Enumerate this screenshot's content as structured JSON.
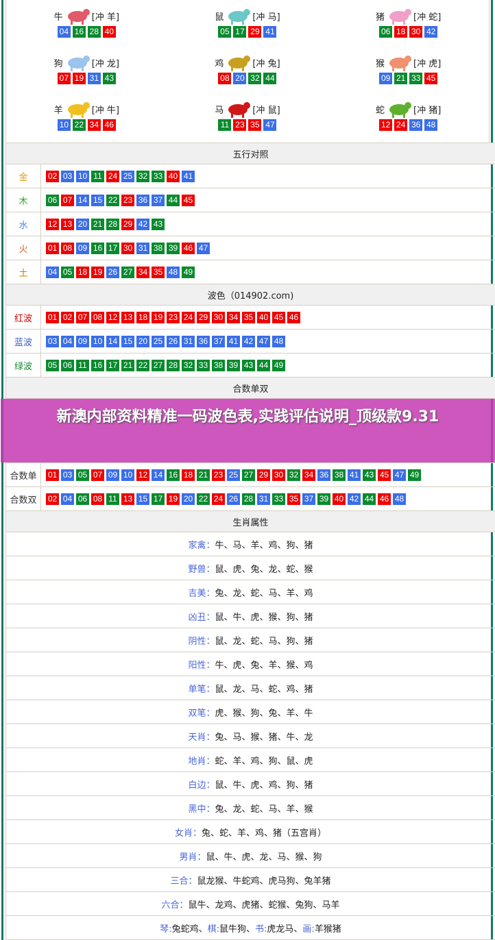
{
  "colors": {
    "red": "#f00000",
    "blue": "#3a6ee8",
    "green": "#0a8a2e",
    "frame": "#0f7a6a",
    "banner": "#c43ab2"
  },
  "zodiac": [
    {
      "name": "牛",
      "clash": "[冲 羊]",
      "nums": [
        "04",
        "16",
        "28",
        "40"
      ],
      "img": "#e05a6a"
    },
    {
      "name": "鼠",
      "clash": "[冲 马]",
      "nums": [
        "05",
        "17",
        "29",
        "41"
      ],
      "img": "#6cc8c8"
    },
    {
      "name": "猪",
      "clash": "[冲 蛇]",
      "nums": [
        "06",
        "18",
        "30",
        "42"
      ],
      "img": "#f0a0c8"
    },
    {
      "name": "狗",
      "clash": "[冲 龙]",
      "nums": [
        "07",
        "19",
        "31",
        "43"
      ],
      "img": "#9cc4ec"
    },
    {
      "name": "鸡",
      "clash": "[冲 兔]",
      "nums": [
        "08",
        "20",
        "32",
        "44"
      ],
      "img": "#c8a020"
    },
    {
      "name": "猴",
      "clash": "[冲 虎]",
      "nums": [
        "09",
        "21",
        "33",
        "45"
      ],
      "img": "#f09070"
    },
    {
      "name": "羊",
      "clash": "[冲 牛]",
      "nums": [
        "10",
        "22",
        "34",
        "46"
      ],
      "img": "#f0c020"
    },
    {
      "name": "马",
      "clash": "[冲 鼠]",
      "nums": [
        "11",
        "23",
        "35",
        "47"
      ],
      "img": "#d01818"
    },
    {
      "name": "蛇",
      "clash": "[冲 猪]",
      "nums": [
        "12",
        "24",
        "36",
        "48"
      ],
      "img": "#60b030"
    }
  ],
  "wuxing": {
    "title": "五行对照",
    "rows": [
      {
        "label": "金",
        "color": "#e0a000",
        "nums": [
          "02",
          "03",
          "10",
          "11",
          "24",
          "25",
          "32",
          "33",
          "40",
          "41"
        ]
      },
      {
        "label": "木",
        "color": "#30a030",
        "nums": [
          "06",
          "07",
          "14",
          "15",
          "22",
          "23",
          "36",
          "37",
          "44",
          "45"
        ]
      },
      {
        "label": "水",
        "color": "#4a80e0",
        "nums": [
          "12",
          "13",
          "20",
          "21",
          "28",
          "29",
          "42",
          "43"
        ]
      },
      {
        "label": "火",
        "color": "#e06030",
        "nums": [
          "01",
          "08",
          "09",
          "16",
          "17",
          "30",
          "31",
          "38",
          "39",
          "46",
          "47"
        ]
      },
      {
        "label": "土",
        "color": "#c08000",
        "nums": [
          "04",
          "05",
          "18",
          "19",
          "26",
          "27",
          "34",
          "35",
          "48",
          "49"
        ]
      }
    ]
  },
  "bose": {
    "title": "波色（014902.com)",
    "rows": [
      {
        "label": "红波",
        "color": "#e00000",
        "wave": "red",
        "nums": [
          "01",
          "02",
          "07",
          "08",
          "12",
          "13",
          "18",
          "19",
          "23",
          "24",
          "29",
          "30",
          "34",
          "35",
          "40",
          "45",
          "46"
        ]
      },
      {
        "label": "蓝波",
        "color": "#3a5fcd",
        "wave": "blue",
        "nums": [
          "03",
          "04",
          "09",
          "10",
          "14",
          "15",
          "20",
          "25",
          "26",
          "31",
          "36",
          "37",
          "41",
          "42",
          "47",
          "48"
        ]
      },
      {
        "label": "绿波",
        "color": "#1a8a30",
        "wave": "green",
        "nums": [
          "05",
          "06",
          "11",
          "16",
          "17",
          "21",
          "22",
          "27",
          "28",
          "32",
          "33",
          "38",
          "39",
          "43",
          "44",
          "49"
        ]
      }
    ]
  },
  "heshu": {
    "title": "合数单双",
    "rows": [
      {
        "label": "合数单",
        "color": "#333",
        "nums": [
          "01",
          "03",
          "05",
          "07",
          "09",
          "10",
          "12",
          "14",
          "16",
          "18",
          "21",
          "23",
          "25",
          "27",
          "29",
          "30",
          "32",
          "34",
          "36",
          "38",
          "41",
          "43",
          "45",
          "47",
          "49"
        ]
      },
      {
        "label": "合数双",
        "color": "#333",
        "nums": [
          "02",
          "04",
          "06",
          "08",
          "11",
          "13",
          "15",
          "17",
          "19",
          "20",
          "22",
          "24",
          "26",
          "28",
          "31",
          "33",
          "35",
          "37",
          "39",
          "40",
          "42",
          "44",
          "46",
          "48"
        ]
      }
    ]
  },
  "shuxing": {
    "title": "生肖属性",
    "rows": [
      {
        "k": "家禽：",
        "v": "牛、马、羊、鸡、狗、猪"
      },
      {
        "k": "野兽：",
        "v": "鼠、虎、兔、龙、蛇、猴"
      },
      {
        "k": "吉美：",
        "v": "兔、龙、蛇、马、羊、鸡"
      },
      {
        "k": "凶丑：",
        "v": "鼠、牛、虎、猴、狗、猪"
      },
      {
        "k": "阴性：",
        "v": "鼠、龙、蛇、马、狗、猪"
      },
      {
        "k": "阳性：",
        "v": "牛、虎、兔、羊、猴、鸡"
      },
      {
        "k": "单笔：",
        "v": "鼠、龙、马、蛇、鸡、猪"
      },
      {
        "k": "双笔：",
        "v": "虎、猴、狗、兔、羊、牛"
      },
      {
        "k": "天肖：",
        "v": "兔、马、猴、猪、牛、龙"
      },
      {
        "k": "地肖：",
        "v": "蛇、羊、鸡、狗、鼠、虎"
      },
      {
        "k": "白边：",
        "v": "鼠、牛、虎、鸡、狗、猪"
      },
      {
        "k": "黑中：",
        "v": "兔、龙、蛇、马、羊、猴"
      },
      {
        "k": "女肖：",
        "v": "兔、蛇、羊、鸡、猪（五宫肖）"
      },
      {
        "k": "男肖：",
        "v": "鼠、牛、虎、龙、马、猴、狗"
      },
      {
        "k": "三合：",
        "v": "鼠龙猴、牛蛇鸡、虎马狗、兔羊猪"
      },
      {
        "k": "六合：",
        "v": "鼠牛、龙鸡、虎猪、蛇猴、兔狗、马羊"
      }
    ],
    "qinqi": [
      {
        "k": "琴:",
        "v": "兔蛇鸡、"
      },
      {
        "k": "棋:",
        "v": "鼠牛狗、"
      },
      {
        "k": "书:",
        "v": "虎龙马、"
      },
      {
        "k": "画:",
        "v": "羊猴猪"
      }
    ]
  },
  "banner": {
    "title": "新澳内部资料精准一码波色表,实践评估说明_顶级款9.31"
  }
}
